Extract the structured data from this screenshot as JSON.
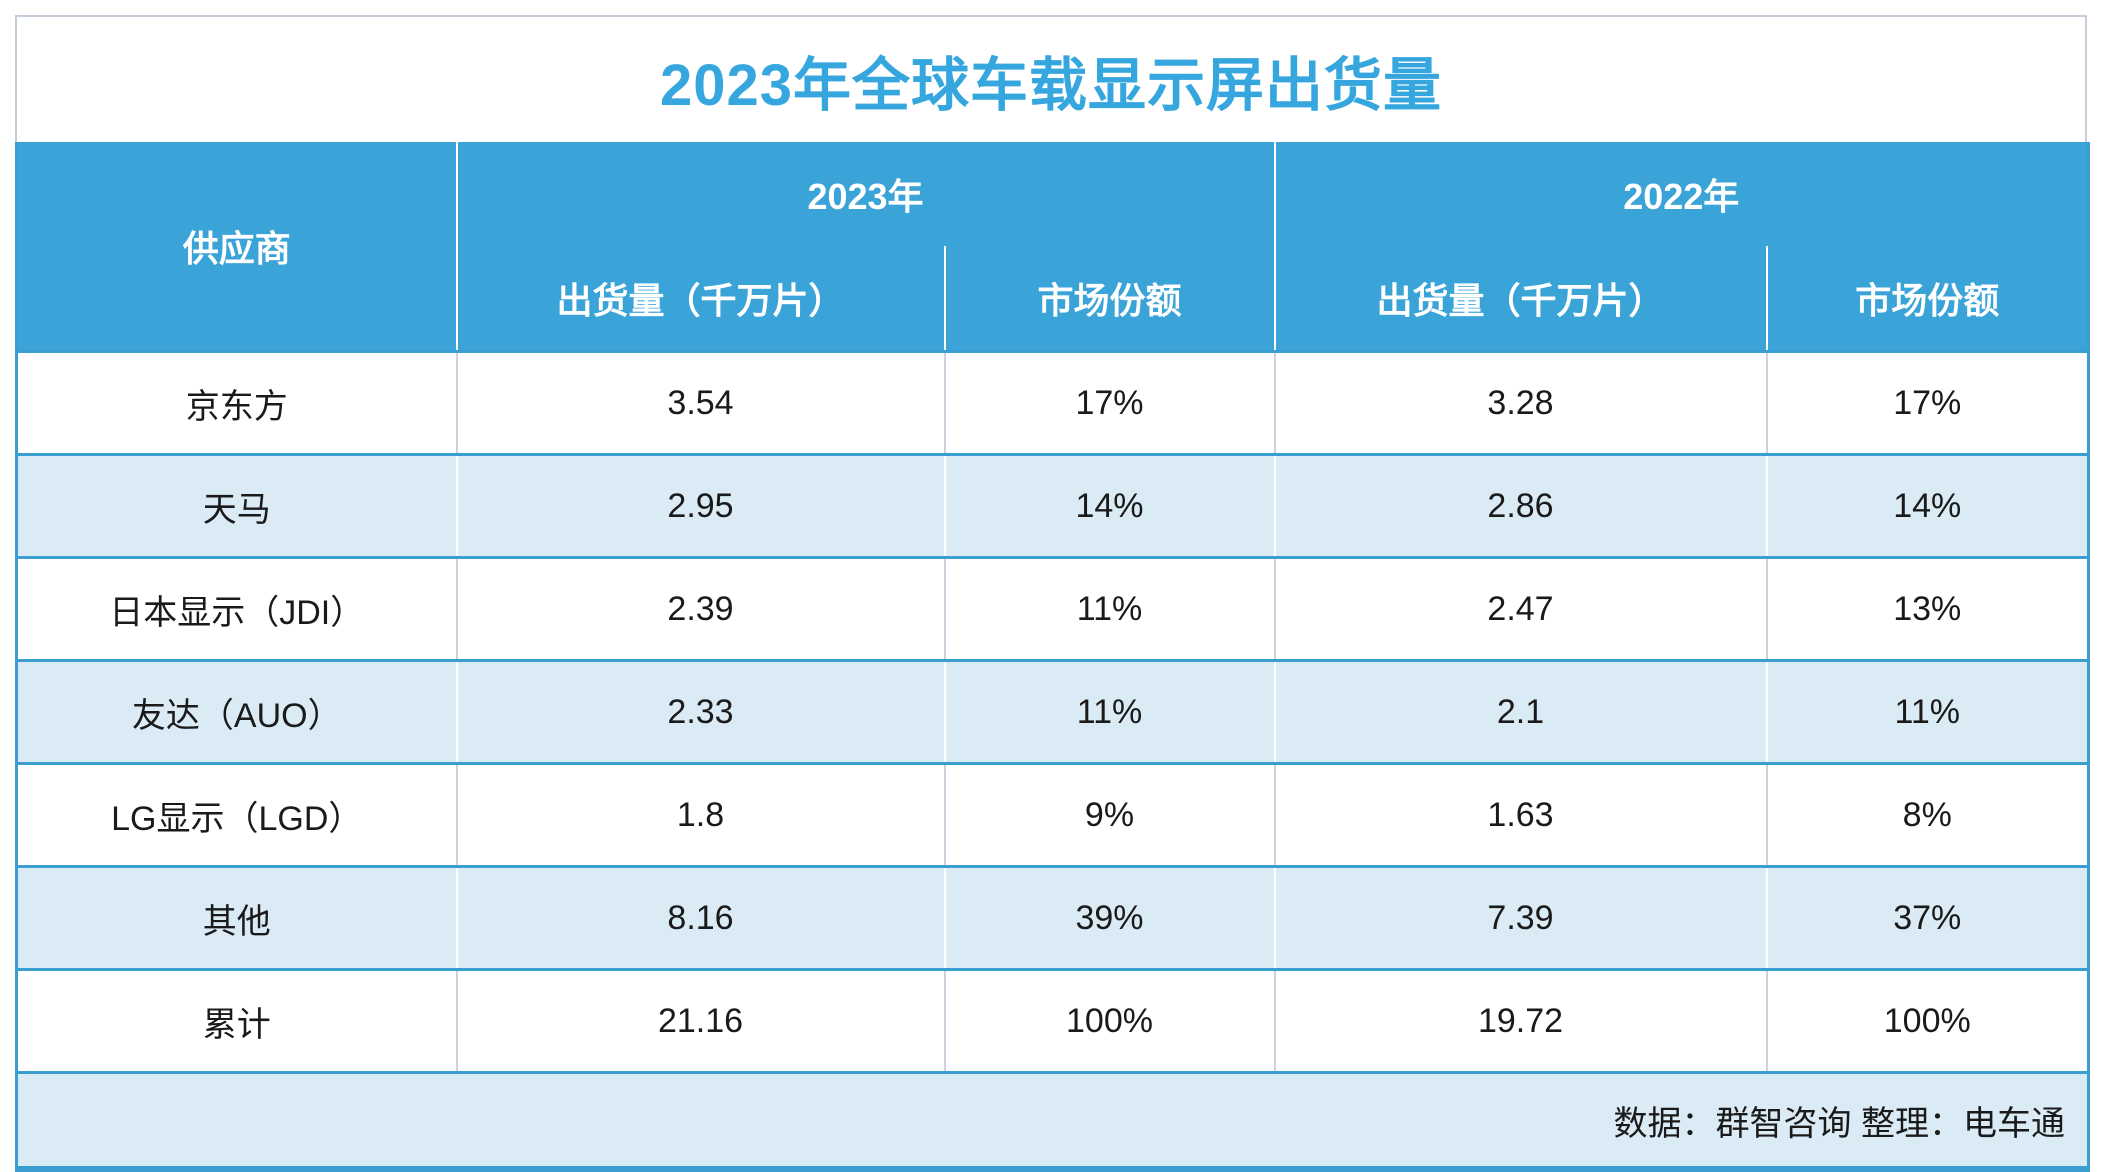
{
  "title": "2023年全球车载显示屏出货量",
  "colors": {
    "header_blue": "#3aa3d7",
    "line_blue": "#3a9fd0",
    "title_blue": "#35a7de",
    "alt_row_blue": "#daebf6",
    "divider_gray": "#c9d3df",
    "outer_gray_border": "#c5cfdb",
    "header_text": "#ffffff",
    "body_text": "#1a1a1a"
  },
  "table": {
    "supplier_header": "供应商",
    "year_groups": [
      {
        "label": "2023年",
        "sub": [
          "出货量（千万片）",
          "市场份额"
        ]
      },
      {
        "label": "2022年",
        "sub": [
          "出货量（千万片）",
          "市场份额"
        ]
      }
    ],
    "rows": [
      {
        "supplier": "京东方",
        "values": [
          "3.54",
          "17%",
          "3.28",
          "17%"
        ]
      },
      {
        "supplier": "天马",
        "values": [
          "2.95",
          "14%",
          "2.86",
          "14%"
        ]
      },
      {
        "supplier": "日本显示（JDI）",
        "values": [
          "2.39",
          "11%",
          "2.47",
          "13%"
        ]
      },
      {
        "supplier": "友达（AUO）",
        "values": [
          "2.33",
          "11%",
          "2.1",
          "11%"
        ]
      },
      {
        "supplier": "LG显示（LGD）",
        "values": [
          "1.8",
          "9%",
          "1.63",
          "8%"
        ]
      },
      {
        "supplier": "其他",
        "values": [
          "8.16",
          "39%",
          "7.39",
          "37%"
        ]
      },
      {
        "supplier": "累计",
        "values": [
          "21.16",
          "100%",
          "19.72",
          "100%"
        ]
      }
    ],
    "footer": "数据：群智咨询 整理：电车通"
  },
  "chart_data": {
    "type": "table",
    "title": "2023年全球车载显示屏出货量",
    "columns": [
      "供应商",
      "2023年 出货量（千万片）",
      "2023年 市场份额",
      "2022年 出货量（千万片）",
      "2022年 市场份额"
    ],
    "rows": [
      [
        "京东方",
        3.54,
        "17%",
        3.28,
        "17%"
      ],
      [
        "天马",
        2.95,
        "14%",
        2.86,
        "14%"
      ],
      [
        "日本显示（JDI）",
        2.39,
        "11%",
        2.47,
        "13%"
      ],
      [
        "友达（AUO）",
        2.33,
        "11%",
        2.1,
        "11%"
      ],
      [
        "LG显示（LGD）",
        1.8,
        "9%",
        1.63,
        "8%"
      ],
      [
        "其他",
        8.16,
        "39%",
        7.39,
        "37%"
      ],
      [
        "累计",
        21.16,
        "100%",
        19.72,
        "100%"
      ]
    ],
    "source_note": "数据：群智咨询 整理：电车通"
  }
}
